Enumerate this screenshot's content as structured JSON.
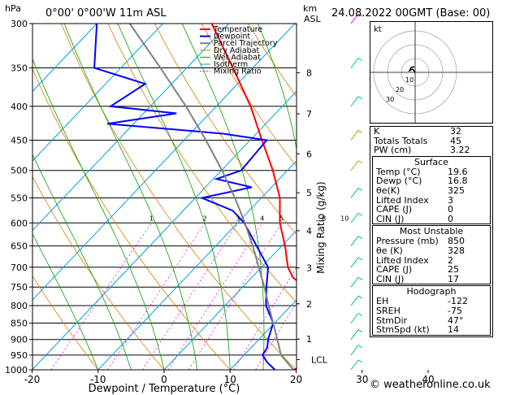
{
  "header": {
    "hpa_label": "hPa",
    "location": "0°00' 0°00'W  11m  ASL",
    "km_label": "km",
    "asl_label": "ASL",
    "datetime": "24.08.2022  00GMT  (Base: 00)"
  },
  "chart_data": {
    "type": "line",
    "xlabel": "Dewpoint / Temperature (°C)",
    "ylabel_right": "Mixing Ratio (g/kg)",
    "x_ticks": [
      -30,
      -20,
      -10,
      0,
      10,
      20,
      30,
      40
    ],
    "pressure_levels": [
      300,
      350,
      400,
      450,
      500,
      550,
      600,
      650,
      700,
      750,
      800,
      850,
      900,
      950,
      1000
    ],
    "km_ticks": [
      1,
      2,
      3,
      4,
      5,
      6,
      7,
      8
    ],
    "lcl_label": "LCL",
    "mixing_ratio_labels": [
      "1",
      "2",
      "3",
      "4",
      "5",
      "8",
      "10",
      "15",
      "20",
      "25"
    ],
    "legend": [
      "Temperature",
      "Dewpoint",
      "Parcel Trajectory",
      "Dry Adiabat",
      "Wet Adiabat",
      "Isotherm",
      "Mixing Ratio"
    ],
    "series": [
      {
        "name": "Temperature",
        "color": "#ff0000",
        "points": [
          [
            1000,
            19.6
          ],
          [
            975,
            21.4
          ],
          [
            950,
            20.5
          ],
          [
            925,
            19.2
          ],
          [
            900,
            17.6
          ],
          [
            850,
            14.4
          ],
          [
            800,
            11.4
          ],
          [
            750,
            9.4
          ],
          [
            725,
            6.2
          ],
          [
            700,
            4.0
          ],
          [
            650,
            0.5
          ],
          [
            600,
            -3.6
          ],
          [
            550,
            -7.2
          ],
          [
            500,
            -12.2
          ],
          [
            450,
            -18.2
          ],
          [
            400,
            -24.8
          ],
          [
            350,
            -33.0
          ],
          [
            300,
            -42.6
          ]
        ]
      },
      {
        "name": "Dewpoint",
        "color": "#0000ff",
        "points": [
          [
            1000,
            16.8
          ],
          [
            975,
            14.6
          ],
          [
            950,
            12.8
          ],
          [
            925,
            12.4
          ],
          [
            900,
            11.4
          ],
          [
            850,
            9.8
          ],
          [
            800,
            6.2
          ],
          [
            750,
            3.6
          ],
          [
            700,
            1.0
          ],
          [
            650,
            -3.8
          ],
          [
            600,
            -9.0
          ],
          [
            575,
            -12.5
          ],
          [
            550,
            -19.0
          ],
          [
            530,
            -13.0
          ],
          [
            515,
            -19.5
          ],
          [
            500,
            -17.0
          ],
          [
            450,
            -17.5
          ],
          [
            440,
            -25.0
          ],
          [
            425,
            -44.0
          ],
          [
            410,
            -35.0
          ],
          [
            400,
            -46.0
          ],
          [
            370,
            -44.0
          ],
          [
            350,
            -54.0
          ],
          [
            300,
            -60.0
          ]
        ]
      },
      {
        "name": "Parcel Trajectory",
        "color": "#808080",
        "points": [
          [
            1000,
            19.6
          ],
          [
            965,
            16.8
          ],
          [
            950,
            15.6
          ],
          [
            900,
            12.8
          ],
          [
            850,
            9.8
          ],
          [
            800,
            6.6
          ],
          [
            750,
            3.3
          ],
          [
            700,
            -0.4
          ],
          [
            650,
            -4.4
          ],
          [
            600,
            -8.9
          ],
          [
            550,
            -14.0
          ],
          [
            500,
            -19.9
          ],
          [
            450,
            -26.7
          ],
          [
            400,
            -34.6
          ],
          [
            350,
            -44.0
          ],
          [
            300,
            -55.0
          ]
        ]
      }
    ]
  },
  "hodograph": {
    "unit_label": "kt",
    "ring_labels": [
      "10",
      "20",
      "30"
    ]
  },
  "indices": [
    {
      "label": "K",
      "value": "32"
    },
    {
      "label": "Totals Totals",
      "value": "45"
    },
    {
      "label": "PW (cm)",
      "value": "3.22"
    }
  ],
  "surface": {
    "title": "Surface",
    "rows": [
      {
        "label": "Temp (°C)",
        "value": "19.6"
      },
      {
        "label": "Dewp (°C)",
        "value": "16.8"
      },
      {
        "label": "θe(K)",
        "value": "325"
      },
      {
        "label": "Lifted Index",
        "value": "3"
      },
      {
        "label": "CAPE (J)",
        "value": "0"
      },
      {
        "label": "CIN (J)",
        "value": "0"
      }
    ]
  },
  "most_unstable": {
    "title": "Most Unstable",
    "rows": [
      {
        "label": "Pressure (mb)",
        "value": "850"
      },
      {
        "label": "θe (K)",
        "value": "328"
      },
      {
        "label": "Lifted Index",
        "value": "2"
      },
      {
        "label": "CAPE (J)",
        "value": "25"
      },
      {
        "label": "CIN (J)",
        "value": "17"
      }
    ]
  },
  "hodograph_table": {
    "title": "Hodograph",
    "rows": [
      {
        "label": "EH",
        "value": "-122"
      },
      {
        "label": "SREH",
        "value": "-75"
      },
      {
        "label": "StmDir",
        "value": "47°"
      },
      {
        "label": "StmSpd (kt)",
        "value": "14"
      }
    ]
  },
  "credit": "© weatheronline.co.uk"
}
